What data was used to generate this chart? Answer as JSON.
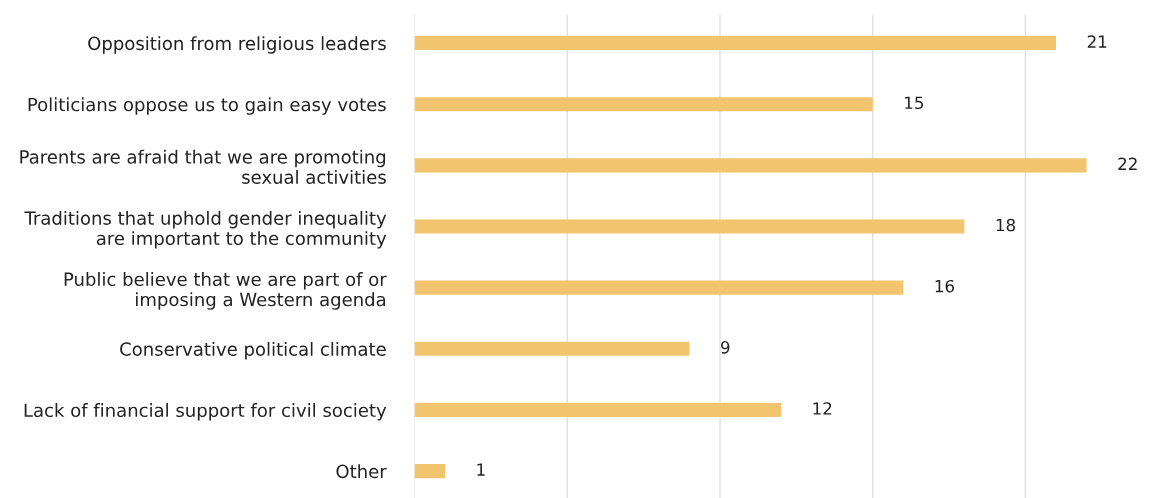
{
  "chart_data": {
    "type": "bar",
    "orientation": "horizontal",
    "categories": [
      "Opposition from religious leaders",
      "Politicians oppose us to gain easy votes",
      "Parents are afraid that we are promoting\nsexual activities",
      "Traditions that uphold gender inequality\nare important to the community",
      "Public believe that we are part of or\nimposing a Western agenda",
      "Conservative political climate",
      "Lack of financial support for civil society",
      "Other"
    ],
    "values": [
      21,
      15,
      22,
      18,
      16,
      9,
      12,
      1
    ],
    "color": "#f2c46d",
    "data_labels": true,
    "xticks": [
      {
        "value": 0,
        "label": null
      },
      {
        "value": 5,
        "label": null
      },
      {
        "value": 10,
        "label": null
      },
      {
        "value": 15,
        "label": null
      },
      {
        "value": 20,
        "label": null
      }
    ],
    "grid": "x",
    "tick_labels": "y"
  }
}
